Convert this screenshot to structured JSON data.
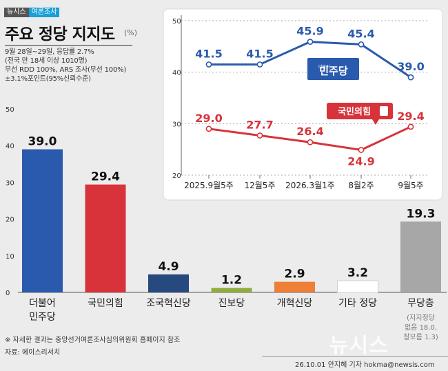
{
  "header": {
    "badge_left": "뉴시스",
    "badge_right": "여론조사",
    "title": "주요 정당 지지도",
    "unit": "(%)"
  },
  "survey_info": [
    "9월 28일~29일, 응답률 2.7%",
    "(전국 만 18세 이상 1010명)",
    "무선 RDD 100%, ARS 조사(무선 100%)",
    "±3.1%포인트(95%신뢰수준)"
  ],
  "colors": {
    "blue": "#2a5aad",
    "red": "#d8333a",
    "navy": "#264a7d",
    "olive": "#8fac3c",
    "orange": "#ee7f36",
    "white": "#ffffff",
    "gray": "#a7a7a7"
  },
  "chart_data": [
    {
      "type": "bar",
      "yticks": [
        0,
        10,
        20,
        30,
        40,
        50
      ],
      "ylim": [
        0,
        50
      ],
      "categories": [
        "더불어\n민주당",
        "국민의힘",
        "조국혁신당",
        "진보당",
        "개혁신당",
        "기타 정당",
        "무당층"
      ],
      "values": [
        39.0,
        29.4,
        4.9,
        1.2,
        2.9,
        3.2,
        19.3
      ],
      "value_labels": [
        "39.0",
        "29.4",
        "4.9",
        "1.2",
        "2.9",
        "3.2",
        "19.3"
      ],
      "colors": [
        "#2a5aad",
        "#d8333a",
        "#264a7d",
        "#8fac3c",
        "#ee7f36",
        "#ffffff",
        "#a7a7a7"
      ],
      "annotation": "(지지정당\n없음 18.0,\n잘모름 1.3)"
    },
    {
      "type": "line",
      "x": [
        "2025.9월5주",
        "12월5주",
        "2026.3월1주",
        "8월2주",
        "9월5주"
      ],
      "yticks": [
        20,
        30,
        40,
        50
      ],
      "ylim": [
        20,
        50
      ],
      "series": [
        {
          "name": "민주당",
          "values": [
            41.5,
            41.5,
            45.9,
            45.4,
            39.0
          ],
          "labels": [
            "41.5",
            "41.5",
            "45.9",
            "45.4",
            "39.0"
          ],
          "color": "#2a5aad"
        },
        {
          "name": "국민의힘",
          "values": [
            29.0,
            27.7,
            26.4,
            24.9,
            29.4
          ],
          "labels": [
            "29.0",
            "27.7",
            "26.4",
            "24.9",
            "29.4"
          ],
          "color": "#d8333a"
        }
      ],
      "logo_prefix": "더불어"
    }
  ],
  "footer": {
    "note": "※ 자세한 결과는 중앙선거여론조사심의위원회 홈페이지 참조",
    "source": "자료: 에이스리서치",
    "credit": "26.10.01 안지혜 기자 hokma@newsis.com",
    "watermark": "뉴시스"
  }
}
